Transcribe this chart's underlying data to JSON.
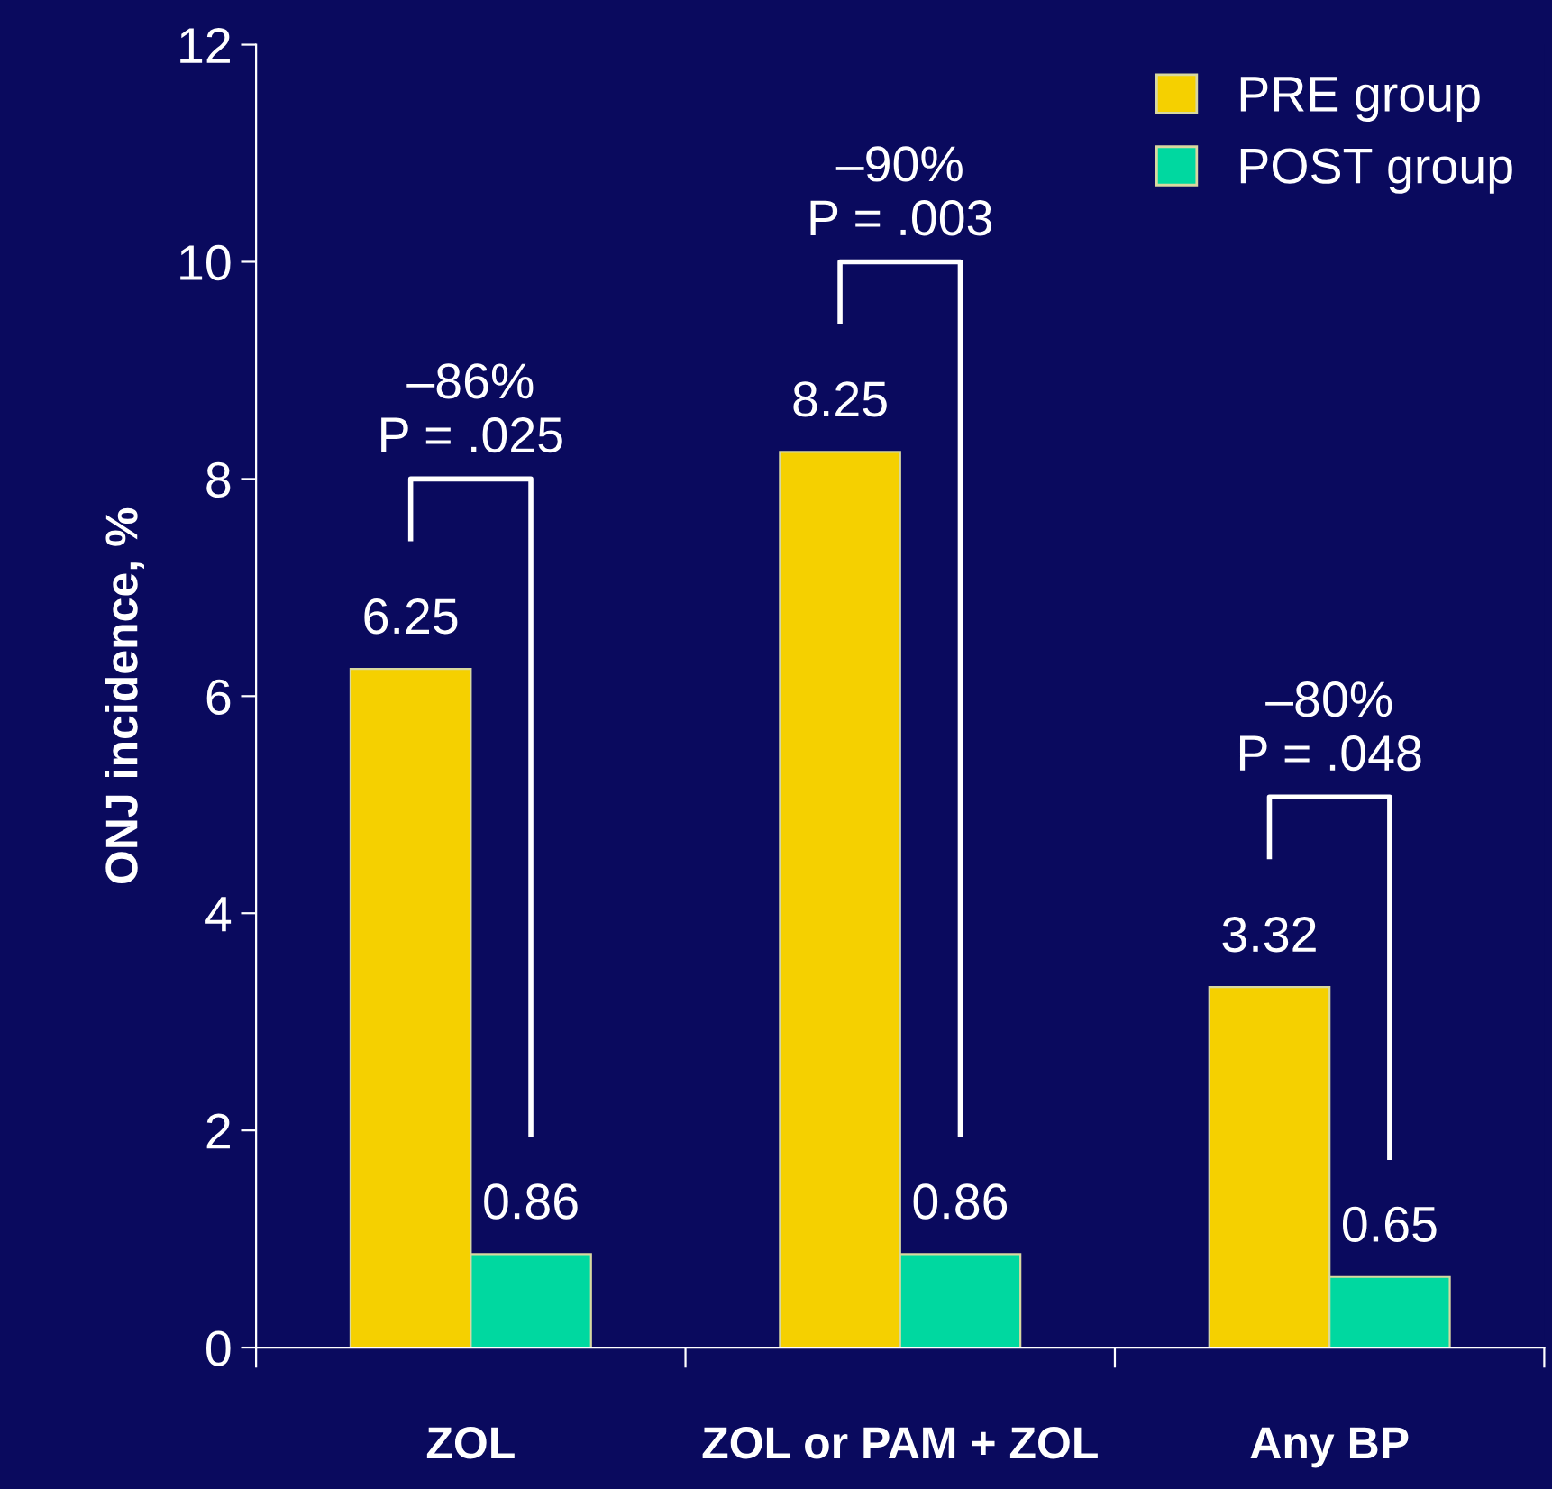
{
  "chart_data": {
    "type": "bar",
    "ylabel": "ONJ incidence, %",
    "categories": [
      "ZOL",
      "ZOL or PAM + ZOL",
      "Any BP"
    ],
    "series": [
      {
        "name": "PRE group",
        "color": "#f5d000",
        "values": [
          6.25,
          8.25,
          3.32
        ]
      },
      {
        "name": "POST group",
        "color": "#00d8a0",
        "values": [
          0.86,
          0.86,
          0.65
        ]
      }
    ],
    "ylim": [
      0,
      12
    ],
    "yticks": [
      0,
      2,
      4,
      6,
      8,
      10,
      12
    ],
    "grid": false,
    "legend": "top right",
    "data_labels": true,
    "annotations": [
      "–86%\nP = .025",
      "–90%\nP = .003",
      "–80%\nP = .048"
    ]
  }
}
